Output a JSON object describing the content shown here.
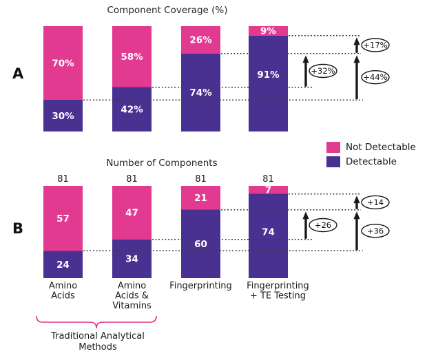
{
  "colors": {
    "not_detectable": "#e23a90",
    "detectable": "#483190",
    "brace": "#df2f7f",
    "dotted_line": "#3c3c3c",
    "annotation": "#1a1a1a",
    "title_text": "#262626",
    "label_text": "#1a1a1a",
    "bar_label_text": "#ffffff"
  },
  "legend": {
    "items": [
      {
        "label": "Not Detectable",
        "color": "#e23a90"
      },
      {
        "label": "Detectable",
        "color": "#483190"
      }
    ]
  },
  "chart_data": [
    {
      "panel_label": "A",
      "title": "Component Coverage (%)",
      "type": "bar",
      "stacked": true,
      "value_format": "percent",
      "ylim": [
        0,
        100
      ],
      "series": [
        {
          "name": "Not Detectable",
          "values": [
            70,
            58,
            26,
            9
          ],
          "data_labels": [
            "70%",
            "58%",
            "26%",
            "9%"
          ]
        },
        {
          "name": "Detectable",
          "values": [
            30,
            42,
            74,
            91
          ],
          "data_labels": [
            "30%",
            "42%",
            "74%",
            "91%"
          ]
        }
      ],
      "dotted_guide_levels": [
        30,
        42,
        74,
        91
      ],
      "annotations": {
        "arrows": [
          {
            "label": "+32%",
            "from_level": 42,
            "to_level": 74,
            "position": "middle"
          },
          {
            "label": "+17%",
            "from_level": 74,
            "to_level": 91,
            "position": "right"
          },
          {
            "label": "+44%",
            "from_level": 30,
            "to_level": 74,
            "position": "right"
          }
        ]
      }
    },
    {
      "panel_label": "B",
      "title": "Number of Components",
      "type": "bar",
      "stacked": true,
      "value_format": "count",
      "ylim": [
        0,
        81
      ],
      "categories": [
        "Amino Acids",
        "Amino Acids & Vitamins",
        "Fingerprinting",
        "Fingerprinting + TE Testing"
      ],
      "category_label_lines": [
        [
          "Amino",
          "Acids"
        ],
        [
          "Amino",
          "Acids &",
          "Vitamins"
        ],
        [
          "Fingerprinting"
        ],
        [
          "Fingerprinting",
          "+ TE Testing"
        ]
      ],
      "totals": [
        "81",
        "81",
        "81",
        "81"
      ],
      "series": [
        {
          "name": "Not Detectable",
          "values": [
            57,
            47,
            21,
            7
          ],
          "data_labels": [
            "57",
            "47",
            "21",
            "7"
          ]
        },
        {
          "name": "Detectable",
          "values": [
            24,
            34,
            60,
            74
          ],
          "data_labels": [
            "24",
            "34",
            "60",
            "74"
          ]
        }
      ],
      "dotted_guide_levels": [
        24,
        34,
        60,
        74
      ],
      "annotations": {
        "arrows": [
          {
            "label": "+26",
            "from_level": 34,
            "to_level": 60,
            "position": "middle"
          },
          {
            "label": "+14",
            "from_level": 60,
            "to_level": 74,
            "position": "right"
          },
          {
            "label": "+36",
            "from_level": 24,
            "to_level": 60,
            "position": "right"
          }
        ]
      },
      "brace": {
        "lines": [
          "Traditional Analytical",
          "Methods"
        ],
        "from_bar": 0,
        "to_bar": 1
      }
    }
  ]
}
